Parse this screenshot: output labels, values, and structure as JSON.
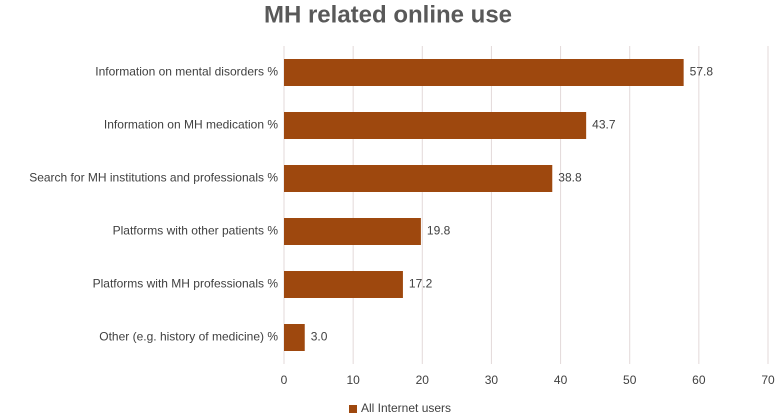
{
  "chart_data": {
    "type": "bar",
    "orientation": "horizontal",
    "title": "MH related online use",
    "categories": [
      "Information on mental disorders %",
      "Information on MH medication %",
      "Search for MH institutions and professionals %",
      "Platforms with other patients %",
      "Platforms with MH professionals %",
      "Other (e.g. history of medicine) %"
    ],
    "series": [
      {
        "name": "All Internet users",
        "color": "#9e480e",
        "values": [
          57.8,
          43.7,
          38.8,
          19.8,
          17.2,
          3.0
        ],
        "value_labels": [
          "57.8",
          "43.7",
          "38.8",
          "19.8",
          "17.2",
          "3.0"
        ]
      }
    ],
    "xlim": [
      0,
      70
    ],
    "xticks": [
      0,
      10,
      20,
      30,
      40,
      50,
      60,
      70
    ],
    "grid": true,
    "legend": "bottom"
  }
}
